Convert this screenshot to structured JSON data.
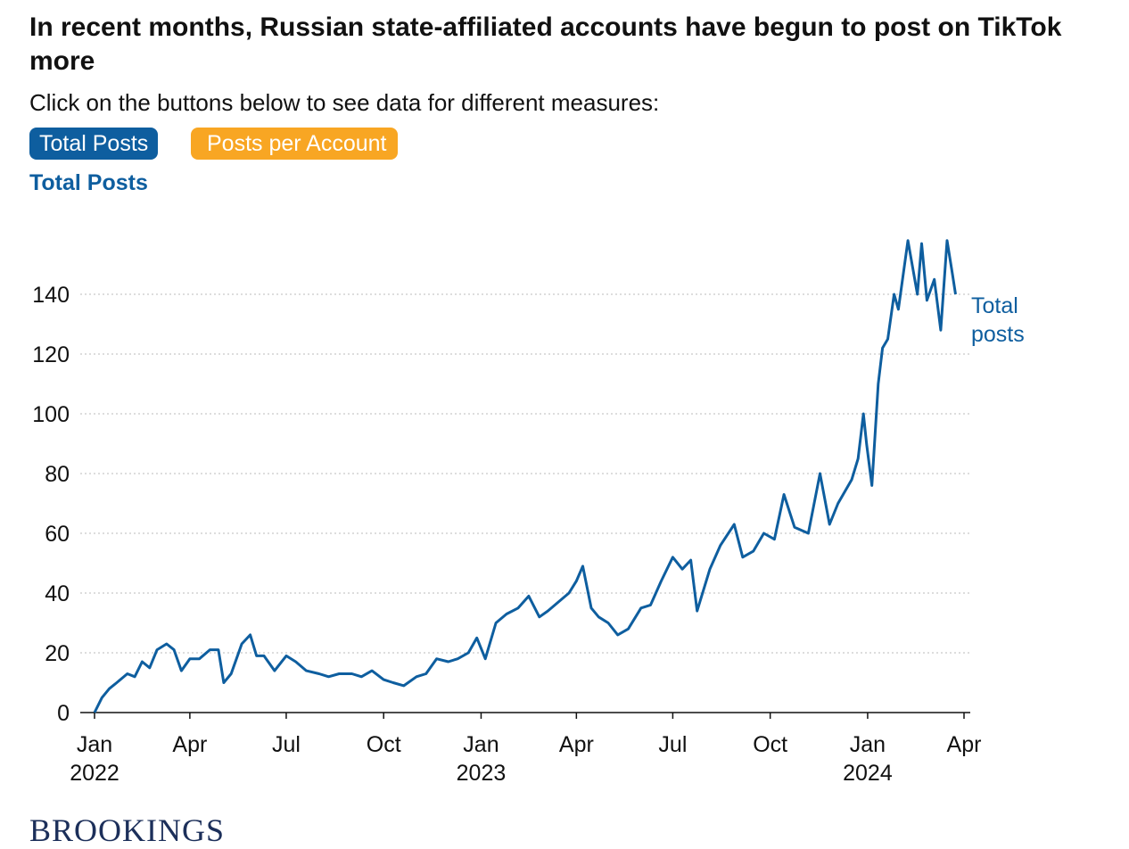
{
  "title": "In recent months, Russian state-affiliated accounts have begun to post on TikTok more",
  "subtitle": "Click on the buttons below to see data for different measures:",
  "buttons": [
    "Total Posts",
    "Posts per Account"
  ],
  "footer": "BROOKINGS",
  "chart_data": {
    "type": "line",
    "title": "Total Posts",
    "x": [
      "2022-01-01",
      "2022-01-08",
      "2022-01-15",
      "2022-01-22",
      "2022-02-01",
      "2022-02-08",
      "2022-02-15",
      "2022-02-22",
      "2022-03-01",
      "2022-03-10",
      "2022-03-17",
      "2022-03-24",
      "2022-04-01",
      "2022-04-10",
      "2022-04-20",
      "2022-04-28",
      "2022-05-03",
      "2022-05-10",
      "2022-05-20",
      "2022-05-28",
      "2022-06-03",
      "2022-06-10",
      "2022-06-20",
      "2022-07-01",
      "2022-07-10",
      "2022-07-20",
      "2022-08-01",
      "2022-08-10",
      "2022-08-20",
      "2022-09-01",
      "2022-09-10",
      "2022-09-20",
      "2022-10-01",
      "2022-10-10",
      "2022-10-20",
      "2022-11-01",
      "2022-11-10",
      "2022-11-20",
      "2022-12-01",
      "2022-12-10",
      "2022-12-20",
      "2022-12-28",
      "2023-01-05",
      "2023-01-15",
      "2023-01-25",
      "2023-02-05",
      "2023-02-15",
      "2023-02-25",
      "2023-03-05",
      "2023-03-15",
      "2023-03-25",
      "2023-04-01",
      "2023-04-07",
      "2023-04-15",
      "2023-04-22",
      "2023-05-01",
      "2023-05-10",
      "2023-05-20",
      "2023-06-01",
      "2023-06-10",
      "2023-06-20",
      "2023-07-01",
      "2023-07-10",
      "2023-07-18",
      "2023-07-24",
      "2023-08-05",
      "2023-08-15",
      "2023-08-28",
      "2023-09-05",
      "2023-09-15",
      "2023-09-25",
      "2023-10-05",
      "2023-10-14",
      "2023-10-24",
      "2023-11-06",
      "2023-11-17",
      "2023-11-26",
      "2023-12-04",
      "2023-12-17",
      "2023-12-23",
      "2023-12-28",
      "2023-12-31",
      "2024-01-05",
      "2024-01-11",
      "2024-01-15",
      "2024-01-20",
      "2024-01-26",
      "2024-01-30",
      "2024-02-08",
      "2024-02-13",
      "2024-02-17",
      "2024-02-21",
      "2024-02-26",
      "2024-03-04",
      "2024-03-10",
      "2024-03-16",
      "2024-03-21",
      "2024-03-24"
    ],
    "series": [
      {
        "name": "Total posts",
        "color": "#0e5e9f",
        "values": [
          0,
          5,
          8,
          10,
          13,
          12,
          17,
          15,
          21,
          23,
          21,
          14,
          18,
          18,
          21,
          21,
          10,
          13,
          23,
          26,
          19,
          19,
          14,
          19,
          17,
          14,
          13,
          12,
          13,
          13,
          12,
          14,
          11,
          10,
          9,
          12,
          13,
          18,
          17,
          18,
          20,
          25,
          18,
          30,
          33,
          35,
          39,
          32,
          34,
          37,
          40,
          44,
          49,
          35,
          32,
          30,
          26,
          28,
          35,
          36,
          44,
          52,
          48,
          51,
          34,
          48,
          56,
          63,
          52,
          54,
          60,
          58,
          73,
          62,
          60,
          80,
          63,
          70,
          78,
          85,
          100,
          90,
          76,
          110,
          122,
          125,
          140,
          135,
          158,
          148,
          140,
          157,
          138,
          145,
          128,
          158,
          147,
          140
        ]
      }
    ],
    "xlim": [
      "2022-01-01",
      "2024-04-01"
    ],
    "xticks": [
      {
        "value": "2022-01-01",
        "label": "Jan\n2022"
      },
      {
        "value": "2022-04-01",
        "label": "Apr"
      },
      {
        "value": "2022-07-01",
        "label": "Jul"
      },
      {
        "value": "2022-10-01",
        "label": "Oct"
      },
      {
        "value": "2023-01-01",
        "label": "Jan\n2023"
      },
      {
        "value": "2023-04-01",
        "label": "Apr"
      },
      {
        "value": "2023-07-01",
        "label": "Jul"
      },
      {
        "value": "2023-10-01",
        "label": "Oct"
      },
      {
        "value": "2024-01-01",
        "label": "Jan\n2024"
      },
      {
        "value": "2024-04-01",
        "label": "Apr"
      }
    ],
    "ylim": [
      0,
      160
    ],
    "yticks": [
      0,
      20,
      40,
      60,
      80,
      100,
      120,
      140
    ],
    "grid": true,
    "series_label": "Total\nposts"
  }
}
